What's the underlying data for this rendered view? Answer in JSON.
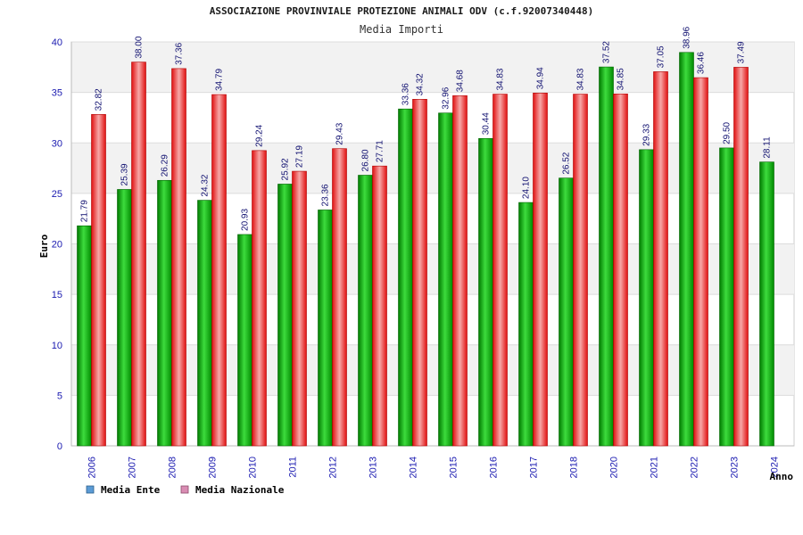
{
  "chart_data": {
    "type": "bar",
    "title": "ASSOCIAZIONE PROVINVIALE PROTEZIONE ANIMALI ODV (c.f.92007340448)",
    "subtitle": "Media Importi",
    "xlabel": "Anno",
    "ylabel": "Euro",
    "ylim": [
      0,
      40
    ],
    "yticks": [
      0,
      5,
      10,
      15,
      20,
      25,
      30,
      35,
      40
    ],
    "grid": true,
    "legend_position": "bottom-left",
    "categories": [
      "2006",
      "2007",
      "2008",
      "2009",
      "2010",
      "2011",
      "2012",
      "2013",
      "2014",
      "2015",
      "2016",
      "2017",
      "2018",
      "2020",
      "2021",
      "2022",
      "2023",
      "2024"
    ],
    "series": [
      {
        "name": "Media Ente",
        "legend_color": "#5b9bd5",
        "color": "#00b000",
        "values": [
          21.79,
          25.39,
          26.29,
          24.32,
          20.93,
          25.92,
          23.36,
          26.8,
          33.36,
          32.96,
          30.44,
          24.1,
          26.52,
          37.52,
          29.33,
          38.96,
          29.5,
          28.11
        ],
        "labels": [
          "21.79",
          "25.39",
          "26.29",
          "24.32",
          "20.93",
          "25.92",
          "23.36",
          "26.80",
          "33.36",
          "32.96",
          "30.44",
          "24.10",
          "26.52",
          "37.52",
          "29.33",
          "38.96",
          "29.50",
          "28.11"
        ]
      },
      {
        "name": "Media Nazionale",
        "legend_color": "#d98cb3",
        "color": "#e82020",
        "values": [
          32.82,
          38.0,
          37.36,
          34.79,
          29.24,
          27.19,
          29.43,
          27.71,
          34.32,
          34.68,
          34.83,
          34.94,
          34.83,
          34.85,
          37.05,
          36.46,
          37.49,
          null
        ],
        "labels": [
          "32.82",
          "38.00",
          "37.36",
          "34.79",
          "29.24",
          "27.19",
          "29.43",
          "27.71",
          "34.32",
          "34.68",
          "34.83",
          "34.94",
          "34.83",
          "34.85",
          "37.05",
          "36.46",
          "37.49",
          ""
        ]
      }
    ]
  }
}
